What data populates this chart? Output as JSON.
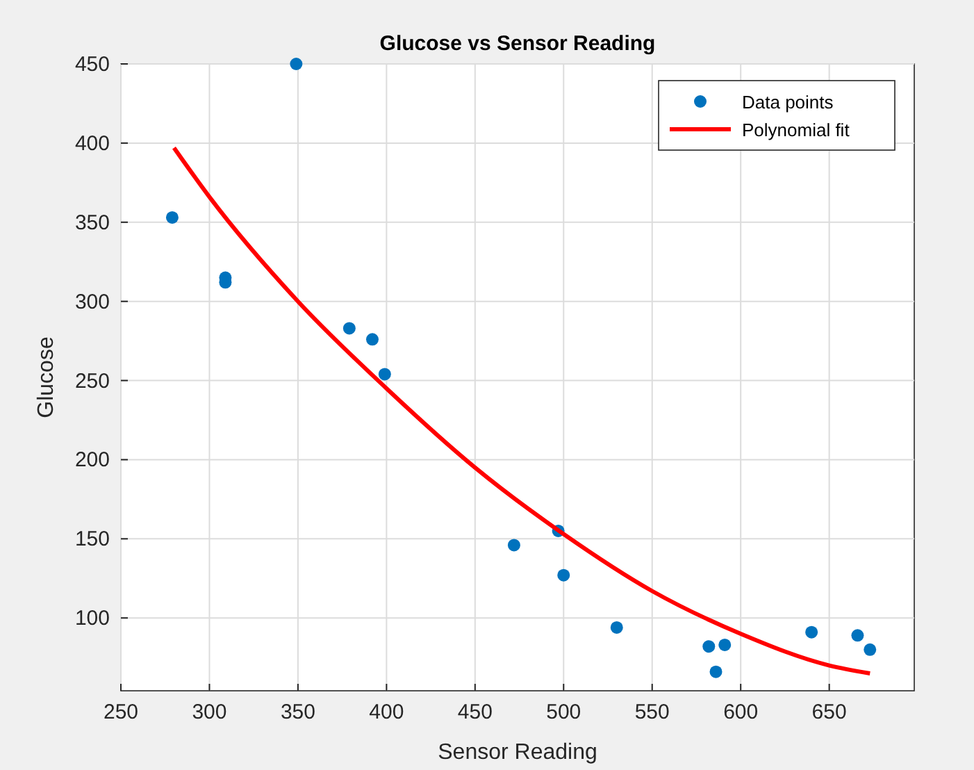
{
  "chart_data": {
    "type": "scatter",
    "title": "Glucose vs Sensor Reading",
    "xlabel": "Sensor Reading",
    "ylabel": "Glucose",
    "xlim": [
      250,
      698
    ],
    "xticks": [
      250,
      300,
      350,
      400,
      450,
      500,
      550,
      600,
      650
    ],
    "ylim": [
      54,
      450
    ],
    "yticks": [
      100,
      150,
      200,
      250,
      300,
      350,
      400,
      450
    ],
    "grid": true,
    "legend": "top right",
    "series": [
      {
        "name": "Data points",
        "marker": "circle",
        "color": "#0072bd",
        "x": [
          279,
          309,
          309,
          349,
          379,
          392,
          399,
          472,
          497,
          500,
          530,
          582,
          586,
          591,
          640,
          666,
          673
        ],
        "values": [
          353,
          315,
          312,
          450,
          283,
          276,
          254,
          146,
          155,
          127,
          94,
          82,
          66,
          83,
          91,
          89,
          80
        ]
      },
      {
        "name": "Polynomial fit",
        "type": "line",
        "color": "#ff0000",
        "x": [
          280,
          300,
          350,
          400,
          450,
          500,
          550,
          600,
          650,
          673
        ],
        "values": [
          397,
          366,
          300,
          245,
          195,
          153,
          117,
          90,
          70,
          65
        ]
      }
    ]
  }
}
